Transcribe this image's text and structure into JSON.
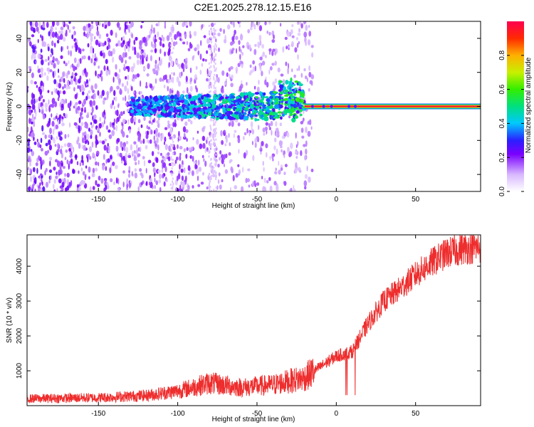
{
  "title": "C2E1.2025.278.12.15.E16",
  "chart_data": [
    {
      "type": "heatmap",
      "title": "C2E1.2025.278.12.15.E16",
      "xlabel": "Height of straight line (km)",
      "ylabel": "Frequency (Hz)",
      "xlim": [
        -195,
        91
      ],
      "ylim": [
        -50,
        50
      ],
      "x_ticks": [
        -150,
        -100,
        -50,
        0,
        50
      ],
      "y_ticks": [
        -40,
        -20,
        0,
        20,
        40
      ],
      "colorbar": {
        "label": "Normalized spectral amplitude",
        "range": [
          0,
          1
        ],
        "ticks": [
          0.0,
          0.2,
          0.4,
          0.6,
          0.8
        ]
      },
      "features": {
        "noise_region_x": [
          -195,
          -20
        ],
        "coherent_band_x": [
          -130,
          -20
        ],
        "tone_line_x": [
          -20,
          91
        ],
        "tone_frequency_hz": 0
      }
    },
    {
      "type": "line",
      "xlabel": "Height of straight line (km)",
      "ylabel": "SNR (10 * v/v)",
      "xlim": [
        -195,
        91
      ],
      "ylim": [
        0,
        4900
      ],
      "x_ticks": [
        -150,
        -100,
        -50,
        0,
        50
      ],
      "y_ticks": [
        1000,
        2000,
        3000,
        4000
      ],
      "series": [
        {
          "name": "SNR",
          "color": "#ee2d2d",
          "x": [
            -195,
            -150,
            -120,
            -100,
            -80,
            -60,
            -40,
            -20,
            -10,
            0,
            10,
            20,
            30,
            40,
            50,
            60,
            70,
            80,
            91
          ],
          "y": [
            200,
            230,
            290,
            420,
            650,
            520,
            600,
            800,
            1120,
            1420,
            1550,
            2350,
            3000,
            3350,
            3750,
            4100,
            4380,
            4500,
            4550
          ]
        }
      ]
    }
  ]
}
